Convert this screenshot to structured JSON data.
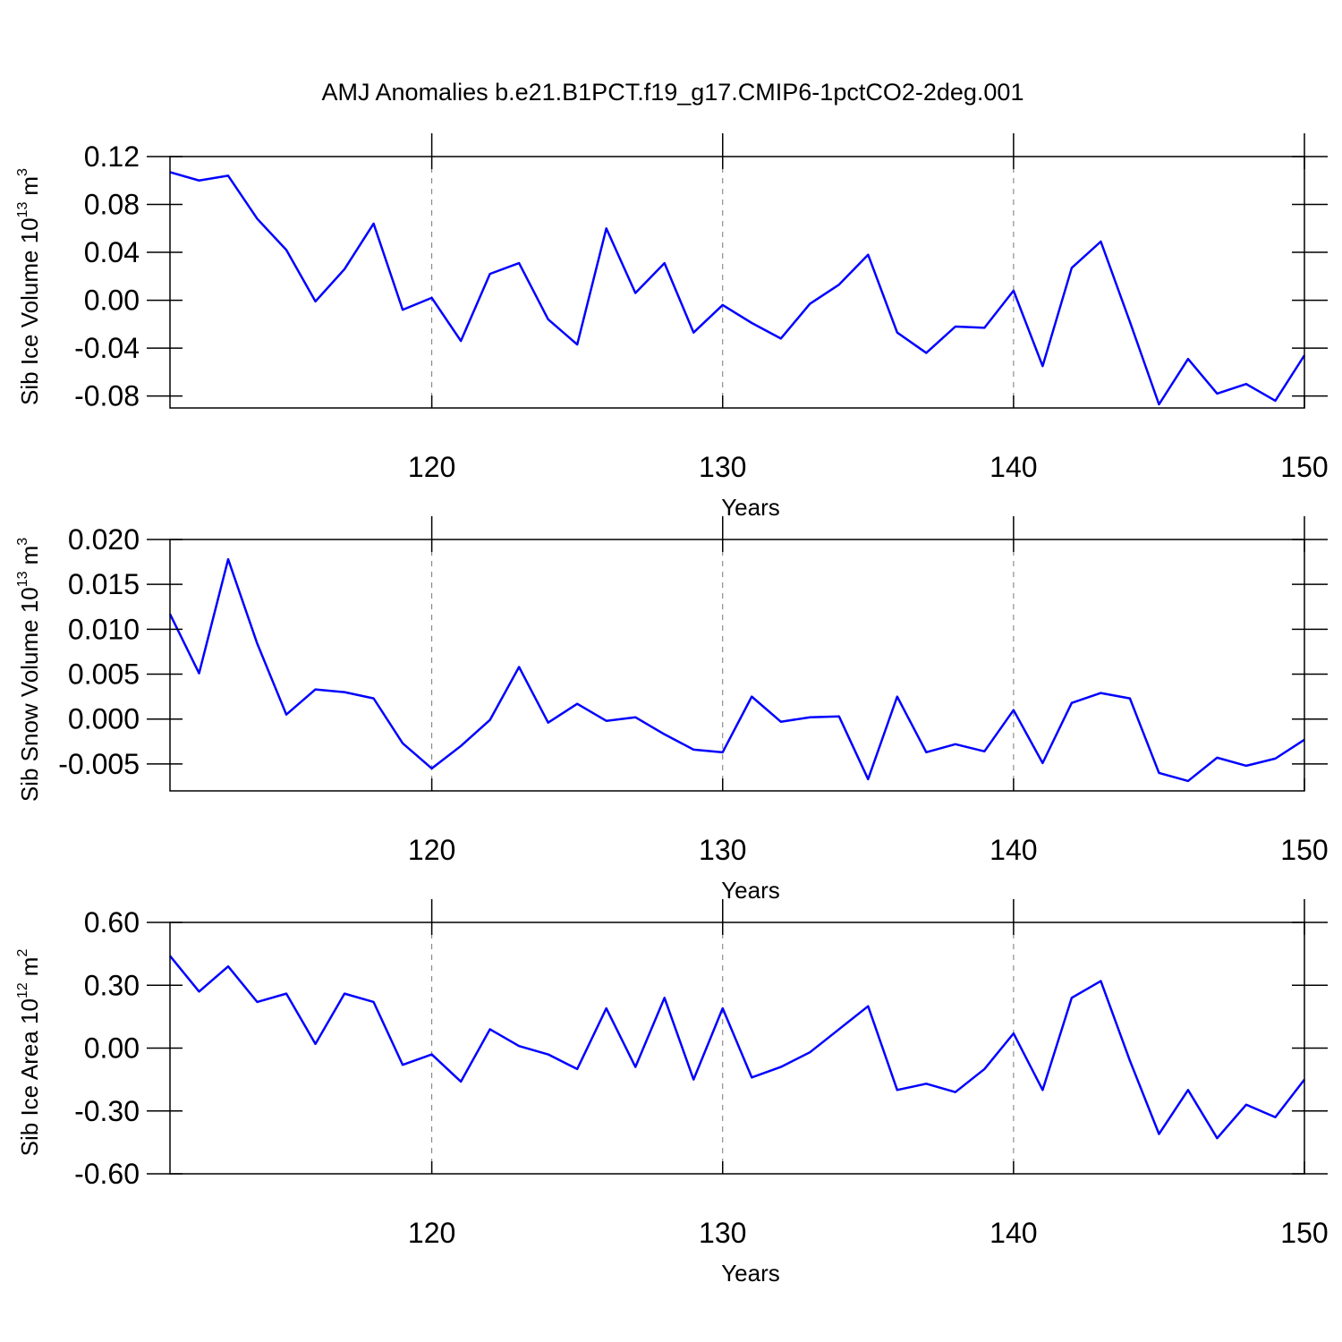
{
  "chart_data": [
    {
      "type": "line",
      "title": "AMJ Anomalies b.e21.B1PCT.f19_g17.CMIP6-1pctCO2-2deg.001",
      "xlabel": "Years",
      "ylabel": "Sib Ice Volume 10",
      "ylabel_power": "13",
      "ylabel_unit": "m",
      "ylabel_unit_power": "3",
      "x": [
        111,
        112,
        113,
        114,
        115,
        116,
        117,
        118,
        119,
        120,
        121,
        122,
        123,
        124,
        125,
        126,
        127,
        128,
        129,
        130,
        131,
        132,
        133,
        134,
        135,
        136,
        137,
        138,
        139,
        140,
        141,
        142,
        143,
        144,
        145,
        146,
        147,
        148,
        149,
        150
      ],
      "series": [
        {
          "color": "#0000ff",
          "values": [
            0.107,
            0.1,
            0.104,
            0.068,
            0.042,
            -0.001,
            0.026,
            0.064,
            -0.008,
            0.002,
            -0.034,
            0.022,
            0.031,
            -0.016,
            -0.037,
            0.06,
            0.006,
            0.031,
            -0.027,
            -0.004,
            -0.019,
            -0.032,
            -0.003,
            0.013,
            0.038,
            -0.027,
            -0.044,
            -0.022,
            -0.023,
            0.008,
            -0.055,
            0.027,
            0.049,
            -0.018,
            -0.087,
            -0.049,
            -0.078,
            -0.07,
            -0.084,
            -0.046
          ]
        }
      ],
      "xlim": [
        111,
        150
      ],
      "xticks": [
        120,
        130,
        140,
        150
      ],
      "ylim": [
        -0.09,
        0.12
      ],
      "yticks": [
        0.12,
        0.08,
        0.04,
        {
          "value": 0,
          "label": "0.00"
        },
        -0.04,
        -0.08
      ],
      "grid": true
    },
    {
      "type": "line",
      "xlabel": "Years",
      "ylabel": "Sib Snow Volume 10",
      "ylabel_power": "13",
      "ylabel_unit": "m",
      "ylabel_unit_power": "3",
      "x": [
        111,
        112,
        113,
        114,
        115,
        116,
        117,
        118,
        119,
        120,
        121,
        122,
        123,
        124,
        125,
        126,
        127,
        128,
        129,
        130,
        131,
        132,
        133,
        134,
        135,
        136,
        137,
        138,
        139,
        140,
        141,
        142,
        143,
        144,
        145,
        146,
        147,
        148,
        149,
        150
      ],
      "series": [
        {
          "color": "#0000ff",
          "values": [
            0.0117,
            0.0051,
            0.0178,
            0.0084,
            0.0005,
            0.0033,
            0.003,
            0.0023,
            -0.0027,
            -0.0055,
            -0.003,
            -0.0001,
            0.0058,
            -0.0004,
            0.0017,
            -0.0002,
            0.0002,
            -0.0017,
            -0.0034,
            -0.0037,
            0.0025,
            -0.0003,
            0.0002,
            0.0003,
            -0.0067,
            0.0025,
            -0.0037,
            -0.0028,
            -0.0036,
            0.001,
            -0.0049,
            0.0018,
            0.0029,
            0.0023,
            -0.006,
            -0.0069,
            -0.0043,
            -0.0052,
            -0.0044,
            -0.0023
          ]
        }
      ],
      "xlim": [
        111,
        150
      ],
      "xticks": [
        120,
        130,
        140,
        150
      ],
      "ylim": [
        -0.008,
        0.02
      ],
      "yticks": [
        {
          "value": 0.02,
          "label": "0.020"
        },
        {
          "value": 0.015,
          "label": "0.015"
        },
        {
          "value": 0.01,
          "label": "0.010"
        },
        {
          "value": 0.005,
          "label": "0.005"
        },
        {
          "value": 0,
          "label": "0.000"
        },
        {
          "value": -0.005,
          "label": "-0.005"
        }
      ],
      "grid": true
    },
    {
      "type": "line",
      "xlabel": "Years",
      "ylabel": "Sib Ice Area 10",
      "ylabel_power": "12",
      "ylabel_unit": "m",
      "ylabel_unit_power": "2",
      "x": [
        111,
        112,
        113,
        114,
        115,
        116,
        117,
        118,
        119,
        120,
        121,
        122,
        123,
        124,
        125,
        126,
        127,
        128,
        129,
        130,
        131,
        132,
        133,
        134,
        135,
        136,
        137,
        138,
        139,
        140,
        141,
        142,
        143,
        144,
        145,
        146,
        147,
        148,
        149,
        150
      ],
      "series": [
        {
          "color": "#0000ff",
          "values": [
            0.44,
            0.27,
            0.39,
            0.22,
            0.26,
            0.02,
            0.26,
            0.22,
            -0.08,
            -0.03,
            -0.16,
            0.09,
            0.01,
            -0.03,
            -0.1,
            0.19,
            -0.09,
            0.24,
            -0.15,
            0.19,
            -0.14,
            -0.09,
            -0.02,
            0.09,
            0.2,
            -0.2,
            -0.17,
            -0.21,
            -0.1,
            0.07,
            -0.2,
            0.24,
            0.32,
            -0.06,
            -0.41,
            -0.2,
            -0.43,
            -0.27,
            -0.33,
            -0.15
          ]
        }
      ],
      "xlim": [
        111,
        150
      ],
      "xticks": [
        120,
        130,
        140,
        150
      ],
      "ylim": [
        -0.6,
        0.6
      ],
      "yticks": [
        {
          "value": 0.6,
          "label": "0.60"
        },
        {
          "value": 0.3,
          "label": "0.30"
        },
        {
          "value": 0,
          "label": "0.00"
        },
        {
          "value": -0.3,
          "label": "-0.30"
        },
        {
          "value": -0.6,
          "label": "-0.60"
        }
      ],
      "grid": true
    }
  ]
}
